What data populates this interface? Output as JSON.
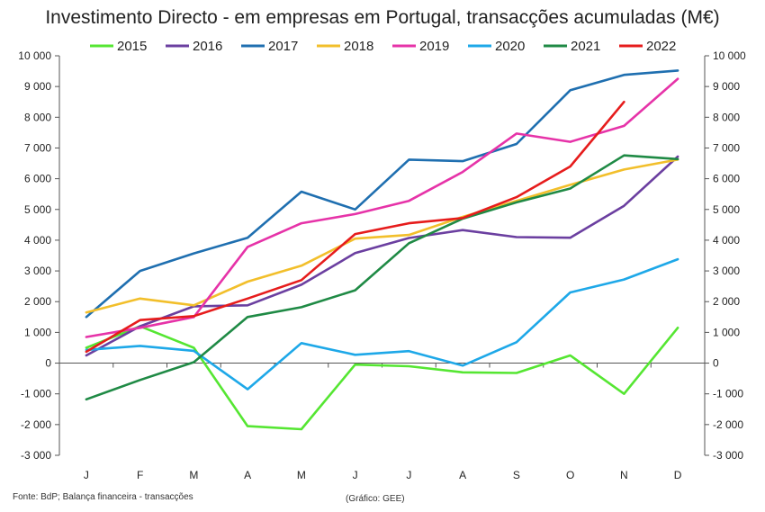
{
  "chart_data": {
    "type": "line",
    "title": "Investimento Directo - em empresas em Portugal, transacções acumuladas (M€)",
    "categories": [
      "J",
      "F",
      "M",
      "A",
      "M",
      "J",
      "J",
      "A",
      "S",
      "O",
      "N",
      "D"
    ],
    "ylim": [
      -3000,
      10000
    ],
    "y_ticks": [
      10000,
      9000,
      8000,
      7000,
      6000,
      5000,
      4000,
      3000,
      2000,
      1000,
      0,
      -1000,
      -2000,
      -3000
    ],
    "y_tick_labels": [
      "10 000",
      "9 000",
      "8 000",
      "7 000",
      "6 000",
      "5 000",
      "4 000",
      "3 000",
      "2 000",
      "1 000",
      "0",
      "-1 000",
      "-2 000",
      "-3 000"
    ],
    "grid": false,
    "secondary_y_axis": true,
    "legend_position": "top",
    "series": [
      {
        "name": "2015",
        "color": "#55e632",
        "values": [
          500,
          1200,
          500,
          -2050,
          -2150,
          -50,
          -100,
          -300,
          -320,
          250,
          -1000,
          1150
        ]
      },
      {
        "name": "2016",
        "color": "#6b3fa0",
        "values": [
          250,
          1200,
          1850,
          1880,
          2550,
          3580,
          4070,
          4330,
          4100,
          4080,
          5120,
          6720
        ]
      },
      {
        "name": "2017",
        "color": "#1f6fb0",
        "values": [
          1500,
          3000,
          3570,
          4080,
          5580,
          5000,
          6620,
          6570,
          7130,
          8880,
          9380,
          9520
        ]
      },
      {
        "name": "2018",
        "color": "#f2bf2b",
        "values": [
          1650,
          2100,
          1880,
          2650,
          3170,
          4050,
          4170,
          4760,
          5280,
          5800,
          6300,
          6620
        ]
      },
      {
        "name": "2019",
        "color": "#e633a8",
        "values": [
          850,
          1150,
          1500,
          3780,
          4550,
          4850,
          5280,
          6220,
          7470,
          7200,
          7720,
          9250
        ]
      },
      {
        "name": "2020",
        "color": "#1ea8e8",
        "values": [
          430,
          560,
          400,
          -850,
          650,
          270,
          390,
          -80,
          680,
          2300,
          2720,
          3380
        ]
      },
      {
        "name": "2021",
        "color": "#1f8a45",
        "values": [
          -1180,
          -550,
          30,
          1500,
          1820,
          2370,
          3900,
          4700,
          5230,
          5680,
          6760,
          6640
        ]
      },
      {
        "name": "2022",
        "color": "#e61c1c",
        "values": [
          370,
          1400,
          1530,
          2100,
          2700,
          4200,
          4550,
          4720,
          5400,
          6400,
          8500,
          null
        ]
      }
    ]
  },
  "footer": {
    "source": "Fonte: BdP; Balança financeira - transacções",
    "credit": "(Gráfico: GEE)"
  }
}
